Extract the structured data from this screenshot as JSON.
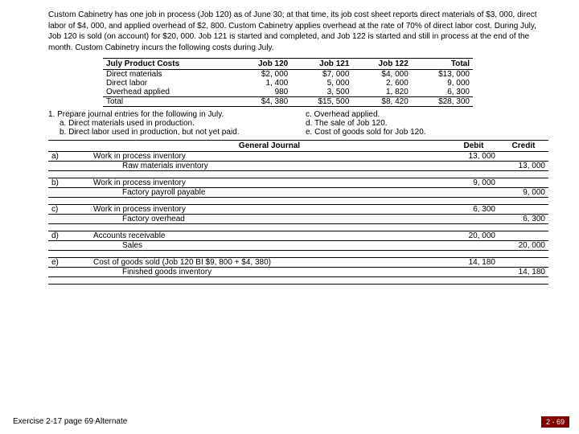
{
  "intro": "Custom Cabinetry has one job in process (Job 120) as of June 30; at that time, its job cost sheet reports direct materials of $3, 000, direct labor of $4, 000, and applied overhead of $2, 800. Custom Cabinetry applies overhead at the rate of 70% of direct labor cost. During July, Job 120 is sold (on account) for $20, 000. Job 121 is started and completed, and Job 122 is started and still in process at the end of the month. Custom Cabinetry incurs the following costs during July.",
  "costs": {
    "header": [
      "July Product Costs",
      "Job 120",
      "Job 121",
      "Job 122",
      "Total"
    ],
    "rows": [
      {
        "label": "Direct materials",
        "v": [
          "$2, 000",
          "$7, 000",
          "$4, 000",
          "$13, 000"
        ]
      },
      {
        "label": "Direct labor",
        "v": [
          "1, 400",
          "5, 000",
          "2, 600",
          "9, 000"
        ]
      },
      {
        "label": "Overhead applied",
        "v": [
          "980",
          "3, 500",
          "1, 820",
          "6, 300"
        ]
      },
      {
        "label": "Total",
        "v": [
          "$4, 380",
          "$15, 500",
          "$8, 420",
          "$28, 300"
        ]
      }
    ]
  },
  "q": {
    "main": "1. Prepare journal entries for the following in July.",
    "a": "a. Direct materials used in production.",
    "b": "b. Direct labor used in production, but not yet paid.",
    "c": "c. Overhead applied.",
    "d": "d. The sale of Job 120.",
    "e": "e. Cost of goods sold for Job 120."
  },
  "journal": {
    "header": [
      "",
      "General Journal",
      "Debit",
      "Credit"
    ],
    "entries": [
      {
        "id": "a)",
        "d": "Work in process inventory",
        "c": "Raw materials inventory",
        "dr": "13, 000",
        "cr": "13, 000"
      },
      {
        "id": "b)",
        "d": "Work in process inventory",
        "c": "Factory payroll payable",
        "dr": "9, 000",
        "cr": "9, 000"
      },
      {
        "id": "c)",
        "d": "Work in process inventory",
        "c": "Factory overhead",
        "dr": "6, 300",
        "cr": "6, 300"
      },
      {
        "id": "d)",
        "d": "Accounts receivable",
        "c": "Sales",
        "dr": "20, 000",
        "cr": "20, 000"
      },
      {
        "id": "e)",
        "d": "Cost of goods sold (Job 120 BI $9, 800 + $4, 380)",
        "c": "Finished goods inventory",
        "dr": "14, 180",
        "cr": "14, 180"
      }
    ]
  },
  "footer_left": "Exercise 2-17 page 69 Alternate",
  "footer_right": "2 - 69"
}
